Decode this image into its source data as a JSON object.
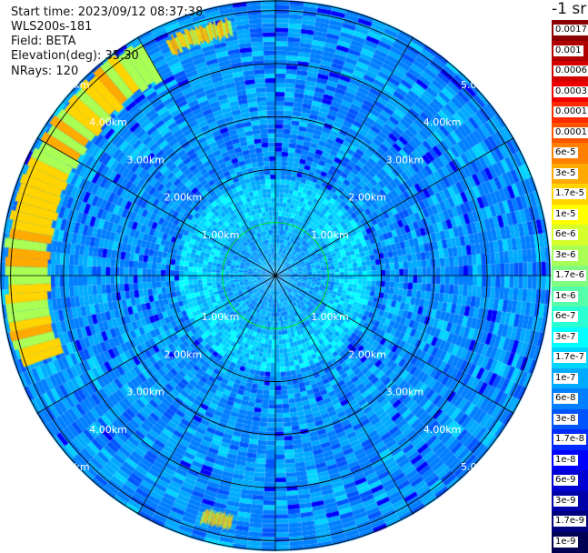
{
  "header": {
    "start_time": "Start time: 2023/09/12 08:37:38",
    "device": "WLS200s-181",
    "field": "Field: BETA",
    "elevation": "Elevation(deg): 35.30",
    "nrays": "NRays: 120"
  },
  "colorbar": {
    "unit": "-1 sr",
    "levels": [
      {
        "label": "0.0017",
        "color": "#8b0000"
      },
      {
        "label": "0.001",
        "color": "#b00000"
      },
      {
        "label": "0.0006",
        "color": "#d40000"
      },
      {
        "label": "0.0003",
        "color": "#f00000"
      },
      {
        "label": "0.00017",
        "color": "#ff2a00"
      },
      {
        "label": "0.0001",
        "color": "#ff5500"
      },
      {
        "label": "6e-5",
        "color": "#ff7f00"
      },
      {
        "label": "3e-5",
        "color": "#ffaa00"
      },
      {
        "label": "1.7e-5",
        "color": "#ffd400"
      },
      {
        "label": "1e-5",
        "color": "#ffff00"
      },
      {
        "label": "6e-6",
        "color": "#d4ff2a"
      },
      {
        "label": "3e-6",
        "color": "#aaff55"
      },
      {
        "label": "1.7e-6",
        "color": "#7fff7f"
      },
      {
        "label": "1e-6",
        "color": "#55ffaa"
      },
      {
        "label": "6e-7",
        "color": "#2affd4"
      },
      {
        "label": "3e-7",
        "color": "#00ffff"
      },
      {
        "label": "1.7e-7",
        "color": "#00d4ff"
      },
      {
        "label": "1e-7",
        "color": "#00aaff"
      },
      {
        "label": "6e-8",
        "color": "#007fff"
      },
      {
        "label": "3e-8",
        "color": "#0055ff"
      },
      {
        "label": "1.7e-8",
        "color": "#002aff"
      },
      {
        "label": "1e-8",
        "color": "#0000ff"
      },
      {
        "label": "6e-9",
        "color": "#0000d4"
      },
      {
        "label": "3e-9",
        "color": "#0000aa"
      },
      {
        "label": "1.7e-9",
        "color": "#00007f"
      },
      {
        "label": "1e-9",
        "color": "#000055"
      }
    ]
  },
  "chart_data": {
    "type": "heatmap",
    "projection": "polar (PPI scan)",
    "range_rings": [
      {
        "range_km": 1,
        "label": "1.00km",
        "color": "#00ff00"
      },
      {
        "range_km": 2,
        "label": "2.00km",
        "color": "#000000"
      },
      {
        "range_km": 3,
        "label": "3.00km",
        "color": "#000000"
      },
      {
        "range_km": 4,
        "label": "4.00km",
        "color": "#000000"
      },
      {
        "range_km": 5,
        "label": "5.00km",
        "color": "#000000"
      }
    ],
    "max_range_km": 5.2,
    "spoke_angles_deg": [
      0,
      30,
      60,
      90,
      120,
      150,
      180,
      210,
      240,
      270,
      300,
      330
    ],
    "background_level": "1e-7 to 3e-8",
    "high_return_bands": [
      {
        "azimuth_deg": [
          250,
          330
        ],
        "range_km": [
          4.3,
          5.1
        ],
        "level": "1.7e-5"
      },
      {
        "azimuth_deg": [
          335,
          350
        ],
        "range_km": [
          4.6,
          4.9
        ],
        "level": "1.7e-5"
      },
      {
        "azimuth_deg": [
          190,
          197
        ],
        "range_km": [
          4.6,
          4.85
        ],
        "level": "1.7e-5"
      }
    ]
  }
}
